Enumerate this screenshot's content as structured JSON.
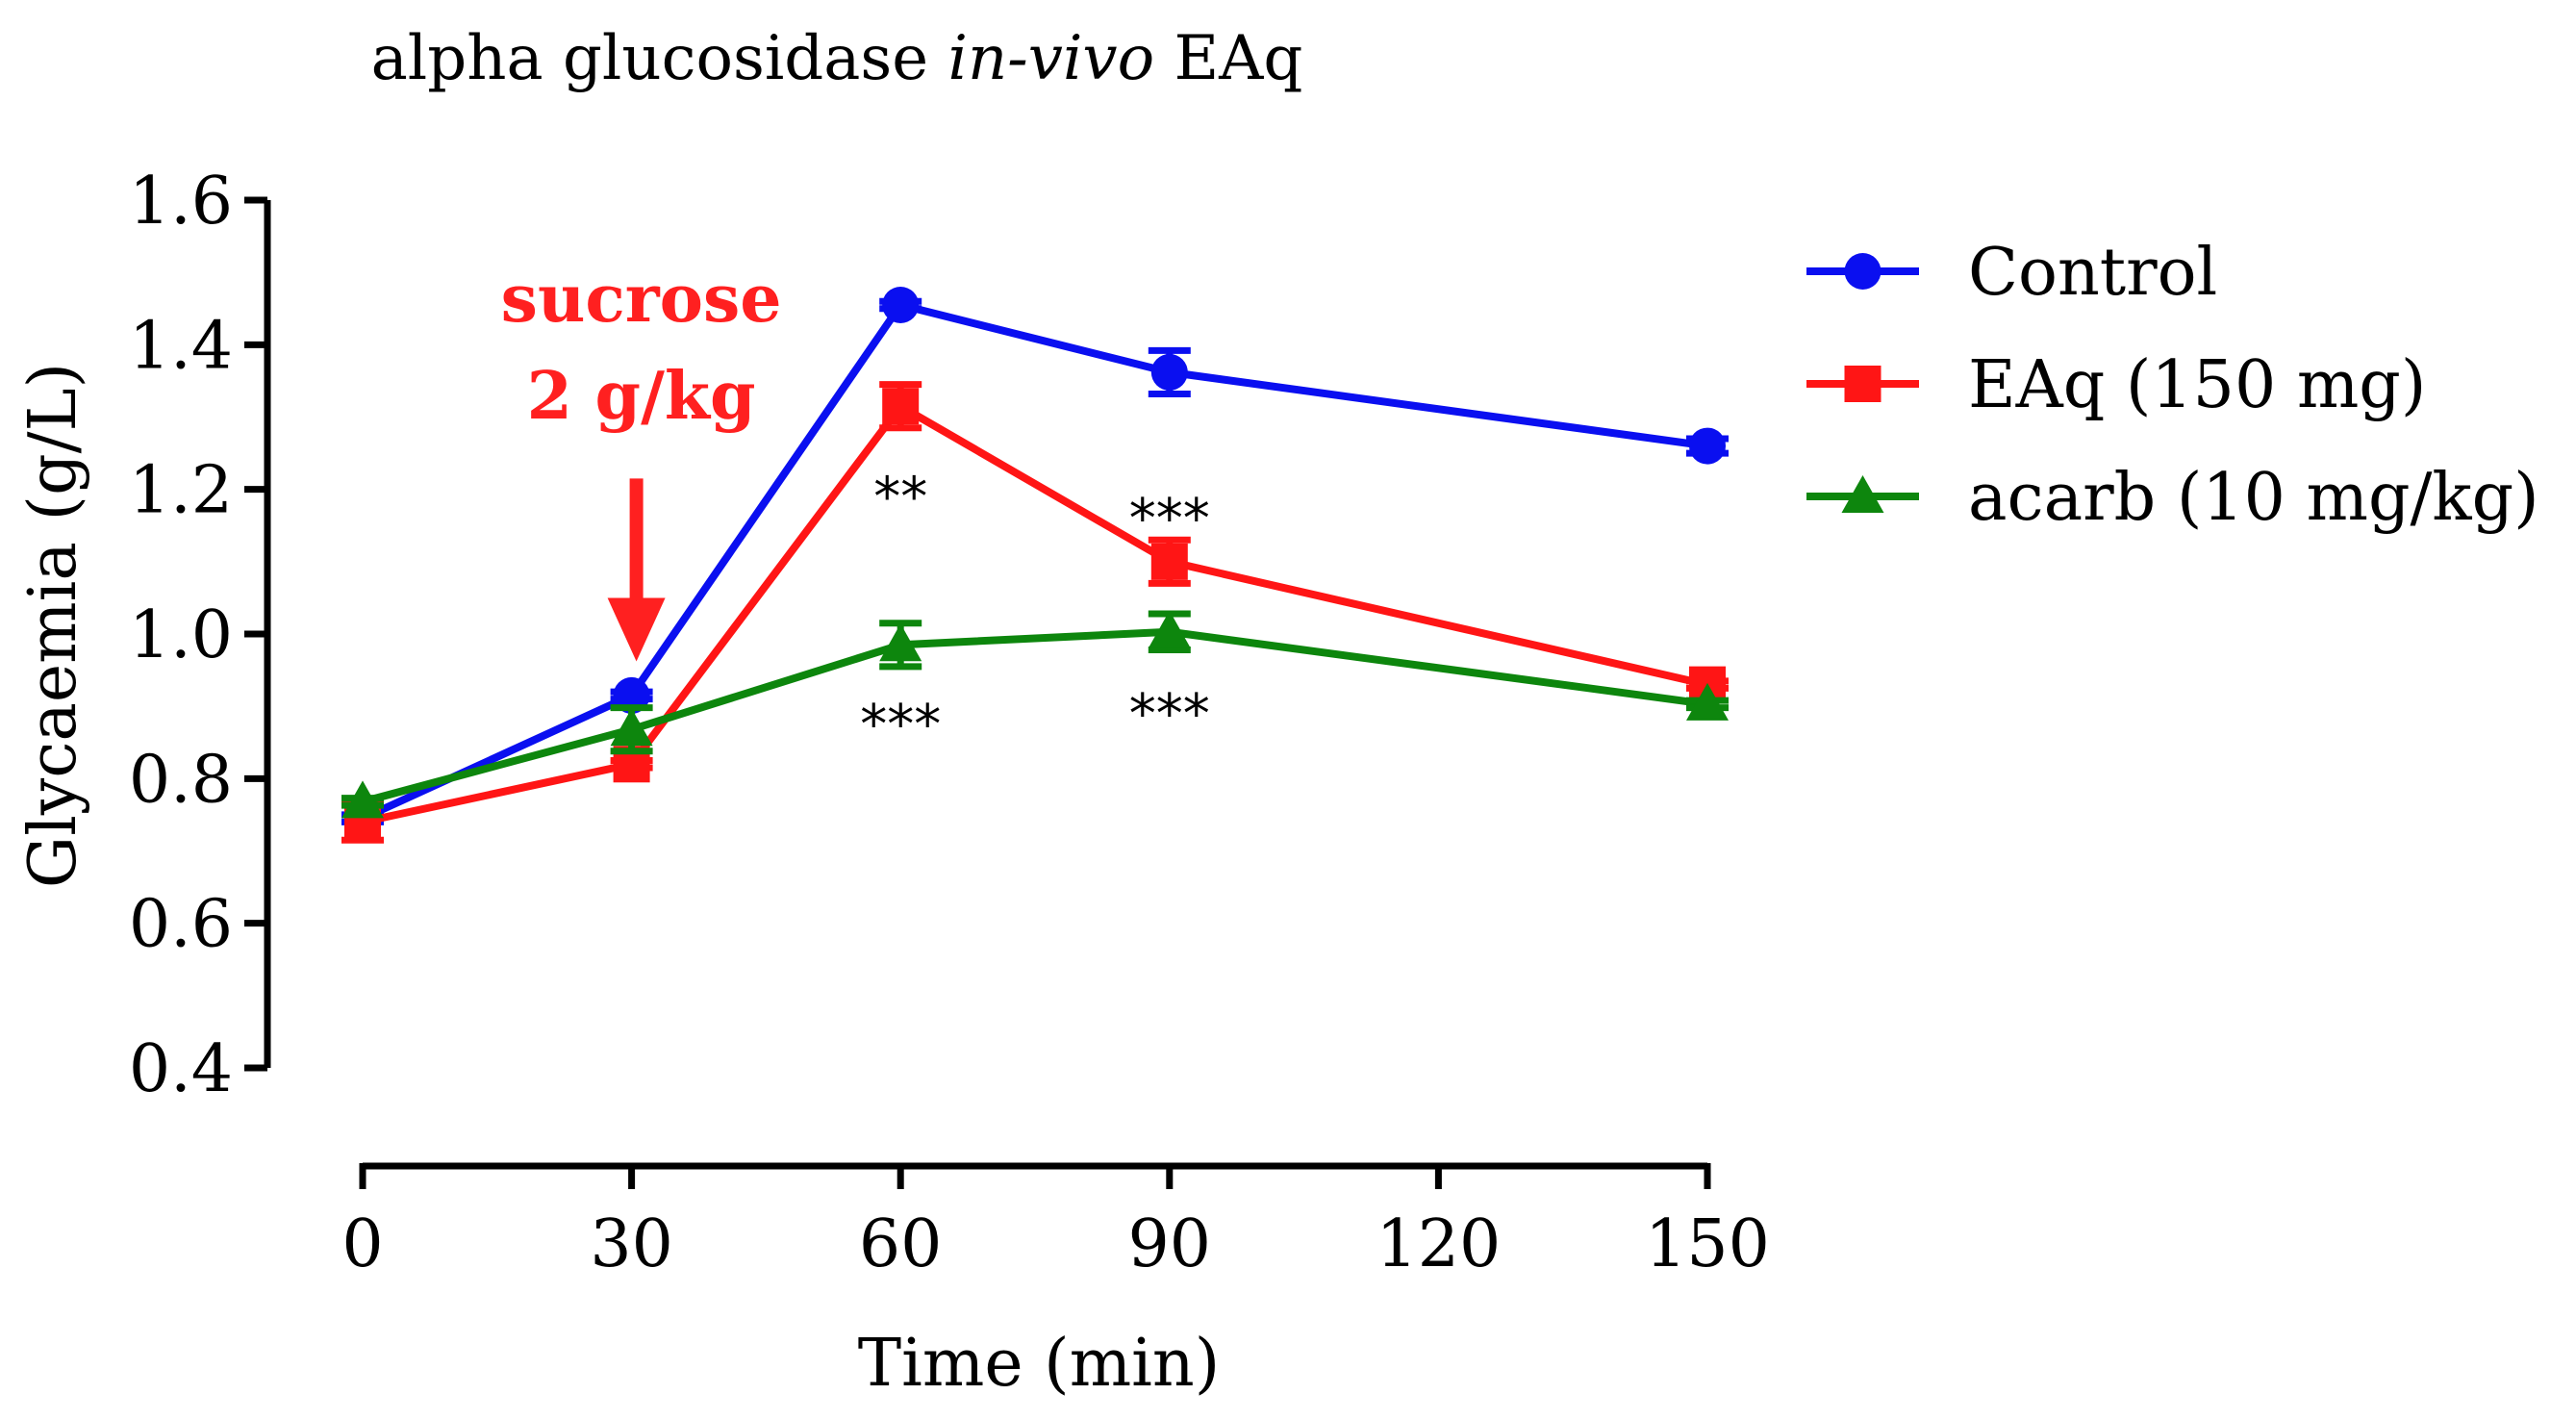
{
  "chart_data": {
    "type": "line",
    "title_parts": [
      "alpha glucosidase ",
      "in-vivo",
      " EAq"
    ],
    "xlabel": "Time (min)",
    "ylabel": "Glycaemia (g/L)",
    "x_ticks": [
      0,
      30,
      60,
      90,
      120,
      150
    ],
    "x_tick_labels": [
      "0",
      "30",
      "60",
      "90",
      "120",
      "150"
    ],
    "y_ticks": [
      0.4,
      0.6,
      0.8,
      1.0,
      1.2,
      1.4,
      1.6
    ],
    "y_tick_labels": [
      "0.4",
      "0.6",
      "0.8",
      "1.0",
      "1.2",
      "1.4",
      "1.6"
    ],
    "xlim": [
      0,
      150
    ],
    "ylim": [
      0.4,
      1.6
    ],
    "grid": false,
    "legend_position": "top-right",
    "series": [
      {
        "name": "Control",
        "color": "#0a0ff0",
        "marker": "circle",
        "x": [
          0,
          30,
          60,
          90,
          150
        ],
        "y": [
          0.745,
          0.915,
          1.455,
          1.362,
          1.26
        ],
        "err": [
          0.005,
          0.005,
          0.005,
          0.03,
          0.01
        ]
      },
      {
        "name": "EAq (150 mg)",
        "color": "#ff1515",
        "marker": "square",
        "x": [
          0,
          30,
          60,
          90,
          150
        ],
        "y": [
          0.74,
          0.82,
          1.315,
          1.1,
          0.93
        ],
        "err": [
          0.025,
          0.005,
          0.03,
          0.03,
          0.005
        ]
      },
      {
        "name": "acarb (10 mg/kg)",
        "color": "#0d860d",
        "marker": "triangle",
        "x": [
          0,
          30,
          60,
          90,
          150
        ],
        "y": [
          0.768,
          0.868,
          0.985,
          1.003,
          0.903
        ],
        "err": [
          0.005,
          0.03,
          0.03,
          0.025,
          0.005
        ]
      }
    ],
    "annotations": [
      {
        "text": "**",
        "x": 60,
        "y": 1.215
      },
      {
        "text": "***",
        "x": 90,
        "y": 1.185
      },
      {
        "text": "***",
        "x": 60,
        "y": 0.9
      },
      {
        "text": "***",
        "x": 90,
        "y": 0.915
      }
    ],
    "event_marker": {
      "line1": "sucrose",
      "line2": "2 g/kg",
      "x": 30,
      "arrow_top_y": 1.215,
      "arrow_bottom_y": 0.97,
      "color": "#ff2020"
    }
  }
}
